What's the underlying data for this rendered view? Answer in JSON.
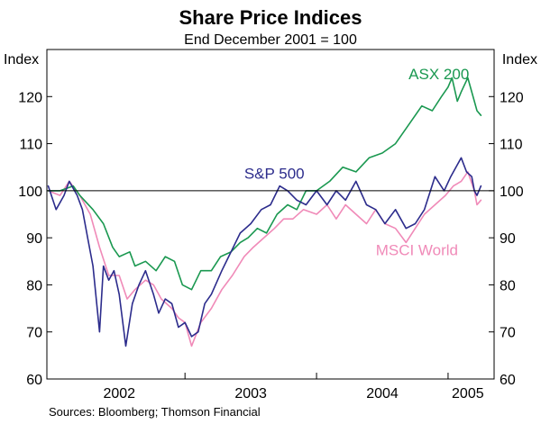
{
  "chart_data": {
    "type": "line",
    "title": "Share Price Indices",
    "subtitle": "End December 2001 = 100",
    "ylabel_left": "Index",
    "ylabel_right": "Index",
    "ylim": [
      60,
      130
    ],
    "yticks": [
      60,
      70,
      80,
      90,
      100,
      110,
      120
    ],
    "xlim": [
      2001.95,
      2005.35
    ],
    "xticks": [
      {
        "label": "2002",
        "value": 2002.5
      },
      {
        "label": "2003",
        "value": 2003.5
      },
      {
        "label": "2004",
        "value": 2004.5
      },
      {
        "label": "2005",
        "value": 2005.15
      }
    ],
    "year_boundaries": [
      2003.0,
      2004.0,
      2005.0
    ],
    "reference_line": 100,
    "series": [
      {
        "name": "ASX 200",
        "color": "#1a9850",
        "x": [
          2001.96,
          2002.05,
          2002.15,
          2002.2,
          2002.3,
          2002.38,
          2002.45,
          2002.5,
          2002.58,
          2002.62,
          2002.7,
          2002.78,
          2002.85,
          2002.92,
          2002.98,
          2003.05,
          2003.12,
          2003.2,
          2003.27,
          2003.35,
          2003.42,
          2003.48,
          2003.55,
          2003.62,
          2003.7,
          2003.78,
          2003.85,
          2003.92,
          2004.0,
          2004.1,
          2004.2,
          2004.3,
          2004.4,
          2004.5,
          2004.6,
          2004.7,
          2004.8,
          2004.88,
          2004.95,
          2005.0,
          2005.03,
          2005.07,
          2005.1,
          2005.15,
          2005.2,
          2005.22,
          2005.25
        ],
        "values": [
          100,
          100,
          101,
          99,
          96,
          93,
          88,
          86,
          87,
          84,
          85,
          83,
          86,
          85,
          80,
          79,
          83,
          83,
          86,
          87,
          89,
          90,
          92,
          91,
          95,
          97,
          96,
          100,
          100,
          102,
          105,
          104,
          107,
          108,
          110,
          114,
          118,
          117,
          120,
          122,
          124,
          119,
          121,
          124,
          119,
          117,
          116
        ]
      },
      {
        "name": "S&P 500",
        "color": "#2c2c8c",
        "x": [
          2001.96,
          2002.02,
          2002.08,
          2002.12,
          2002.18,
          2002.22,
          2002.26,
          2002.3,
          2002.35,
          2002.38,
          2002.42,
          2002.46,
          2002.5,
          2002.55,
          2002.6,
          2002.65,
          2002.7,
          2002.76,
          2002.8,
          2002.85,
          2002.9,
          2002.95,
          2003.0,
          2003.05,
          2003.1,
          2003.15,
          2003.2,
          2003.28,
          2003.35,
          2003.42,
          2003.5,
          2003.58,
          2003.65,
          2003.72,
          2003.78,
          2003.85,
          2003.92,
          2004.0,
          2004.08,
          2004.15,
          2004.22,
          2004.3,
          2004.38,
          2004.45,
          2004.52,
          2004.6,
          2004.68,
          2004.75,
          2004.82,
          2004.9,
          2004.97,
          2005.02,
          2005.06,
          2005.1,
          2005.14,
          2005.18,
          2005.2,
          2005.22,
          2005.25
        ],
        "values": [
          101,
          96,
          99,
          102,
          99,
          96,
          90,
          84,
          70,
          84,
          81,
          83,
          78,
          67,
          76,
          80,
          83,
          78,
          74,
          77,
          76,
          71,
          72,
          69,
          70,
          76,
          78,
          83,
          87,
          91,
          93,
          96,
          97,
          101,
          100,
          98,
          97,
          100,
          97,
          100,
          98,
          102,
          97,
          96,
          93,
          96,
          92,
          93,
          96,
          103,
          100,
          103,
          105,
          107,
          104,
          103,
          100,
          99,
          101
        ]
      },
      {
        "name": "MSCI World",
        "color": "#f08ab8",
        "x": [
          2001.96,
          2002.05,
          2002.12,
          2002.2,
          2002.28,
          2002.35,
          2002.42,
          2002.5,
          2002.56,
          2002.62,
          2002.7,
          2002.76,
          2002.82,
          2002.9,
          2002.95,
          2003.0,
          2003.05,
          2003.12,
          2003.2,
          2003.28,
          2003.36,
          2003.45,
          2003.52,
          2003.6,
          2003.68,
          2003.75,
          2003.82,
          2003.9,
          2004.0,
          2004.08,
          2004.15,
          2004.22,
          2004.3,
          2004.38,
          2004.45,
          2004.52,
          2004.6,
          2004.68,
          2004.75,
          2004.82,
          2004.9,
          2004.98,
          2005.04,
          2005.1,
          2005.15,
          2005.2,
          2005.22,
          2005.25
        ],
        "values": [
          100,
          99,
          102,
          99,
          95,
          88,
          82,
          82,
          77,
          79,
          81,
          80,
          77,
          75,
          73,
          72,
          67,
          72,
          75,
          79,
          82,
          86,
          88,
          90,
          92,
          94,
          94,
          96,
          95,
          97,
          94,
          97,
          95,
          93,
          96,
          93,
          92,
          89,
          92,
          95,
          97,
          99,
          101,
          102,
          104,
          100,
          97,
          98
        ]
      }
    ],
    "annotations": [
      {
        "text": "ASX 200",
        "series": "ASX 200",
        "at": [
          2004.7,
          123.7
        ]
      },
      {
        "text": "S&P 500",
        "series": "S&P 500",
        "at": [
          2003.45,
          102.6
        ]
      },
      {
        "text": "MSCI World",
        "series": "MSCI World",
        "at": [
          2004.45,
          86.3
        ]
      }
    ],
    "source": "Sources: Bloomberg; Thomson Financial"
  }
}
